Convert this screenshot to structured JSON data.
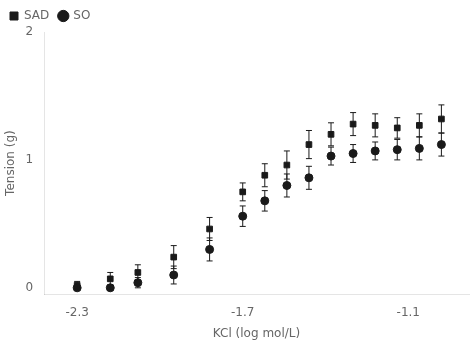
{
  "chart_data": {
    "type": "scatter",
    "xlabel": "KCl (log mol/L)",
    "ylabel": "Tension (g)",
    "xlim": [
      -2.42,
      -0.88
    ],
    "ylim": [
      -0.05,
      2.0
    ],
    "xticks": [
      -2.3,
      -1.7,
      -1.1
    ],
    "yticks": [
      0,
      1,
      2
    ],
    "grid": false,
    "legend": "upper left",
    "series": [
      {
        "name": "SAD",
        "color": "#1a1a1a",
        "marker": "square",
        "x": [
          -2.3,
          -2.18,
          -2.08,
          -1.95,
          -1.82,
          -1.7,
          -1.62,
          -1.54,
          -1.46,
          -1.38,
          -1.3,
          -1.22,
          -1.14,
          -1.06,
          -0.98
        ],
        "values": [
          0.02,
          0.07,
          0.12,
          0.24,
          0.46,
          0.75,
          0.88,
          0.96,
          1.12,
          1.2,
          1.28,
          1.27,
          1.25,
          1.27,
          1.32
        ],
        "errors": [
          0.03,
          0.05,
          0.06,
          0.09,
          0.09,
          0.07,
          0.09,
          0.11,
          0.11,
          0.09,
          0.09,
          0.09,
          0.08,
          0.09,
          0.11
        ]
      },
      {
        "name": "SO",
        "color": "#1a1a1a",
        "marker": "circle",
        "x": [
          -2.3,
          -2.18,
          -2.08,
          -1.95,
          -1.82,
          -1.7,
          -1.62,
          -1.54,
          -1.46,
          -1.38,
          -1.3,
          -1.22,
          -1.14,
          -1.06,
          -0.98
        ],
        "values": [
          0.0,
          0.0,
          0.04,
          0.1,
          0.3,
          0.56,
          0.68,
          0.8,
          0.86,
          1.03,
          1.05,
          1.07,
          1.08,
          1.09,
          1.12
        ],
        "errors": [
          0.02,
          0.02,
          0.04,
          0.07,
          0.09,
          0.08,
          0.08,
          0.09,
          0.09,
          0.07,
          0.07,
          0.07,
          0.08,
          0.09,
          0.09
        ]
      }
    ]
  }
}
